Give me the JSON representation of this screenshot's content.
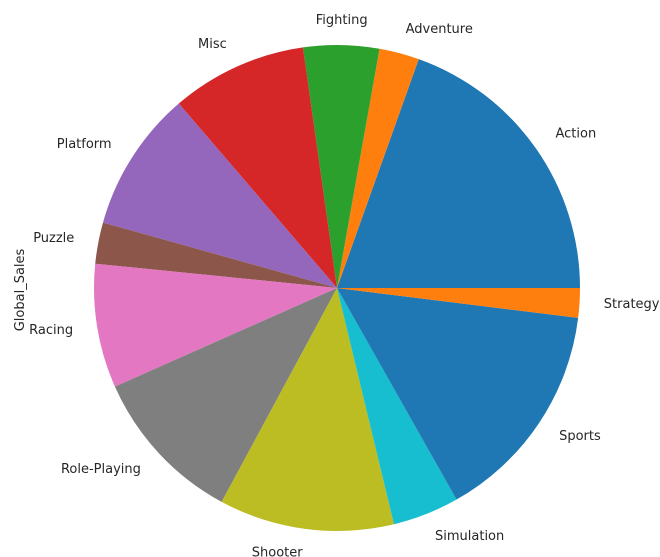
{
  "chart_data": {
    "type": "pie",
    "ylabel": "Global_Sales",
    "start_angle_deg": 0,
    "direction": "counterclockwise",
    "slices": [
      {
        "label": "Action",
        "value": 1722.9,
        "color": "#1f77b4"
      },
      {
        "label": "Adventure",
        "value": 234.6,
        "color": "#ff7f0e"
      },
      {
        "label": "Fighting",
        "value": 444.1,
        "color": "#2ca02c"
      },
      {
        "label": "Misc",
        "value": 797.6,
        "color": "#d62728"
      },
      {
        "label": "Platform",
        "value": 826.8,
        "color": "#9467bd"
      },
      {
        "label": "Puzzle",
        "value": 242.2,
        "color": "#8c564b"
      },
      {
        "label": "Racing",
        "value": 726.8,
        "color": "#e377c2"
      },
      {
        "label": "Role-Playing",
        "value": 923.8,
        "color": "#7f7f7f"
      },
      {
        "label": "Shooter",
        "value": 1026.2,
        "color": "#bcbd22"
      },
      {
        "label": "Simulation",
        "value": 389.7,
        "color": "#17becf"
      },
      {
        "label": "Sports",
        "value": 1309.2,
        "color": "#1f77b4"
      },
      {
        "label": "Strategy",
        "value": 173.3,
        "color": "#ff7f0e"
      }
    ]
  }
}
